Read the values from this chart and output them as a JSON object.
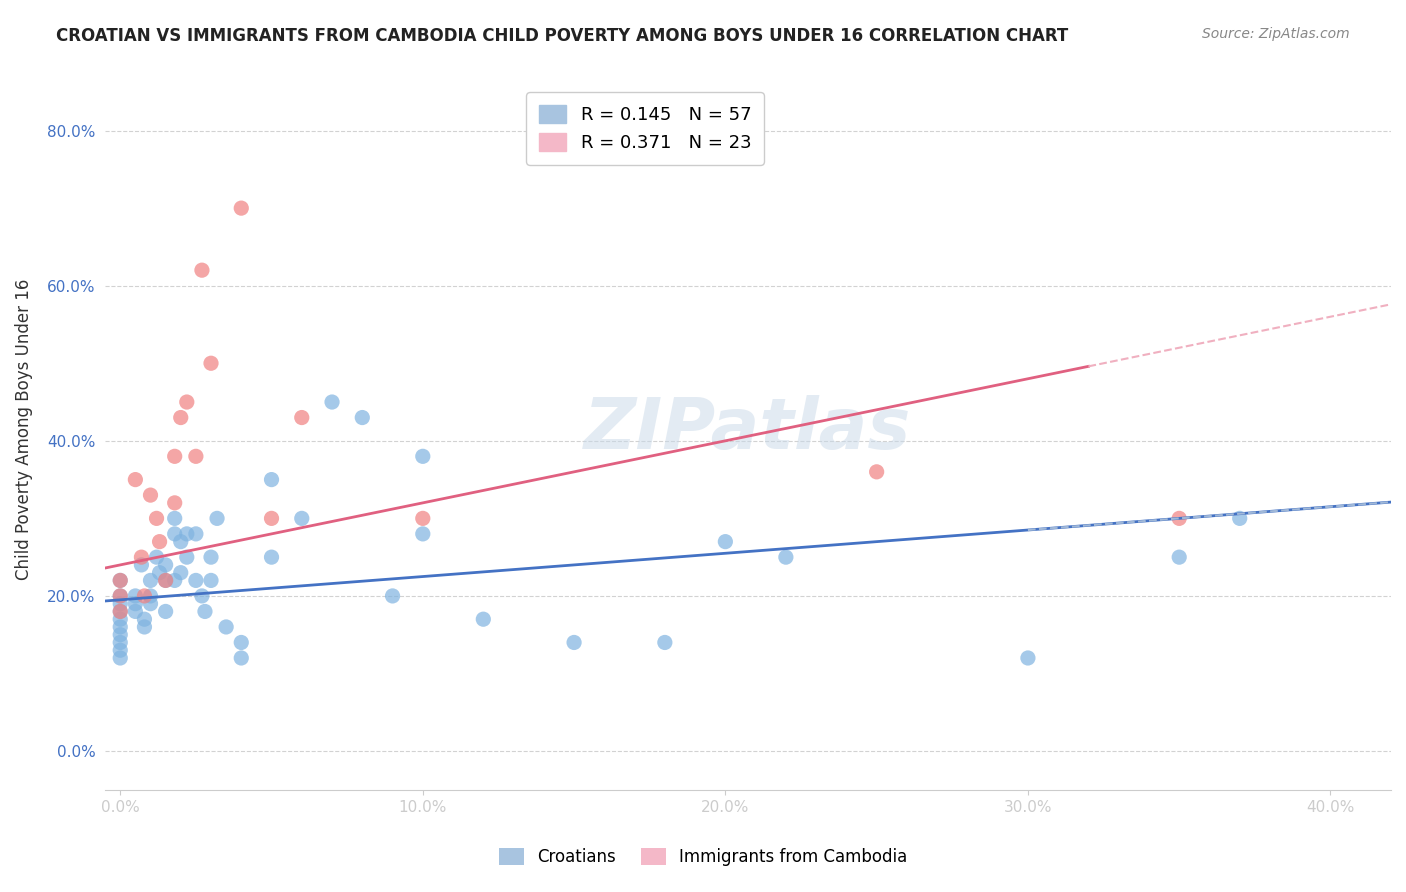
{
  "title": "CROATIAN VS IMMIGRANTS FROM CAMBODIA CHILD POVERTY AMONG BOYS UNDER 16 CORRELATION CHART",
  "source": "Source: ZipAtlas.com",
  "ylabel": "Child Poverty Among Boys Under 16",
  "xlabel_ticks": [
    "0.0%",
    "10.0%",
    "20.0%",
    "30.0%",
    "40.0%"
  ],
  "xlabel_vals": [
    0.0,
    0.1,
    0.2,
    0.3,
    0.4
  ],
  "ylabel_ticks": [
    "0.0%",
    "20.0%",
    "40.0%",
    "60.0%",
    "80.0%"
  ],
  "ylabel_vals": [
    0.0,
    0.2,
    0.4,
    0.6,
    0.8
  ],
  "xlim": [
    -0.005,
    0.42
  ],
  "ylim": [
    -0.05,
    0.88
  ],
  "watermark": "ZIPatlas",
  "legend_entries": [
    {
      "label": "R = 0.145   N = 57",
      "color": "#a8c4e0"
    },
    {
      "label": "R = 0.371   N = 23",
      "color": "#f4b8c8"
    }
  ],
  "croatians_color": "#7fb3e0",
  "cambodia_color": "#f08080",
  "trendline_blue_color": "#4472c4",
  "trendline_pink_color": "#e06080",
  "trendline_dash_blue_color": "#a0b8d8",
  "legend_label1": "Croatians",
  "legend_label2": "Immigrants from Cambodia",
  "croatians": {
    "x": [
      0.0,
      0.0,
      0.0,
      0.0,
      0.0,
      0.0,
      0.0,
      0.0,
      0.0,
      0.0,
      0.005,
      0.005,
      0.005,
      0.007,
      0.008,
      0.008,
      0.01,
      0.01,
      0.01,
      0.012,
      0.013,
      0.015,
      0.015,
      0.015,
      0.018,
      0.018,
      0.018,
      0.02,
      0.02,
      0.022,
      0.022,
      0.025,
      0.025,
      0.027,
      0.028,
      0.03,
      0.03,
      0.032,
      0.035,
      0.04,
      0.04,
      0.05,
      0.05,
      0.06,
      0.07,
      0.08,
      0.09,
      0.1,
      0.1,
      0.12,
      0.15,
      0.18,
      0.2,
      0.22,
      0.3,
      0.35,
      0.37
    ],
    "y": [
      0.18,
      0.17,
      0.19,
      0.16,
      0.15,
      0.2,
      0.22,
      0.14,
      0.13,
      0.12,
      0.2,
      0.19,
      0.18,
      0.24,
      0.17,
      0.16,
      0.22,
      0.2,
      0.19,
      0.25,
      0.23,
      0.22,
      0.18,
      0.24,
      0.28,
      0.22,
      0.3,
      0.27,
      0.23,
      0.28,
      0.25,
      0.22,
      0.28,
      0.2,
      0.18,
      0.25,
      0.22,
      0.3,
      0.16,
      0.12,
      0.14,
      0.35,
      0.25,
      0.3,
      0.45,
      0.43,
      0.2,
      0.28,
      0.38,
      0.17,
      0.14,
      0.14,
      0.27,
      0.25,
      0.12,
      0.25,
      0.3
    ]
  },
  "cambodia": {
    "x": [
      0.0,
      0.0,
      0.0,
      0.005,
      0.007,
      0.008,
      0.01,
      0.012,
      0.013,
      0.015,
      0.018,
      0.018,
      0.02,
      0.022,
      0.025,
      0.027,
      0.03,
      0.04,
      0.05,
      0.06,
      0.1,
      0.25,
      0.35
    ],
    "y": [
      0.18,
      0.22,
      0.2,
      0.35,
      0.25,
      0.2,
      0.33,
      0.3,
      0.27,
      0.22,
      0.38,
      0.32,
      0.43,
      0.45,
      0.38,
      0.62,
      0.5,
      0.7,
      0.3,
      0.43,
      0.3,
      0.36,
      0.3
    ]
  }
}
